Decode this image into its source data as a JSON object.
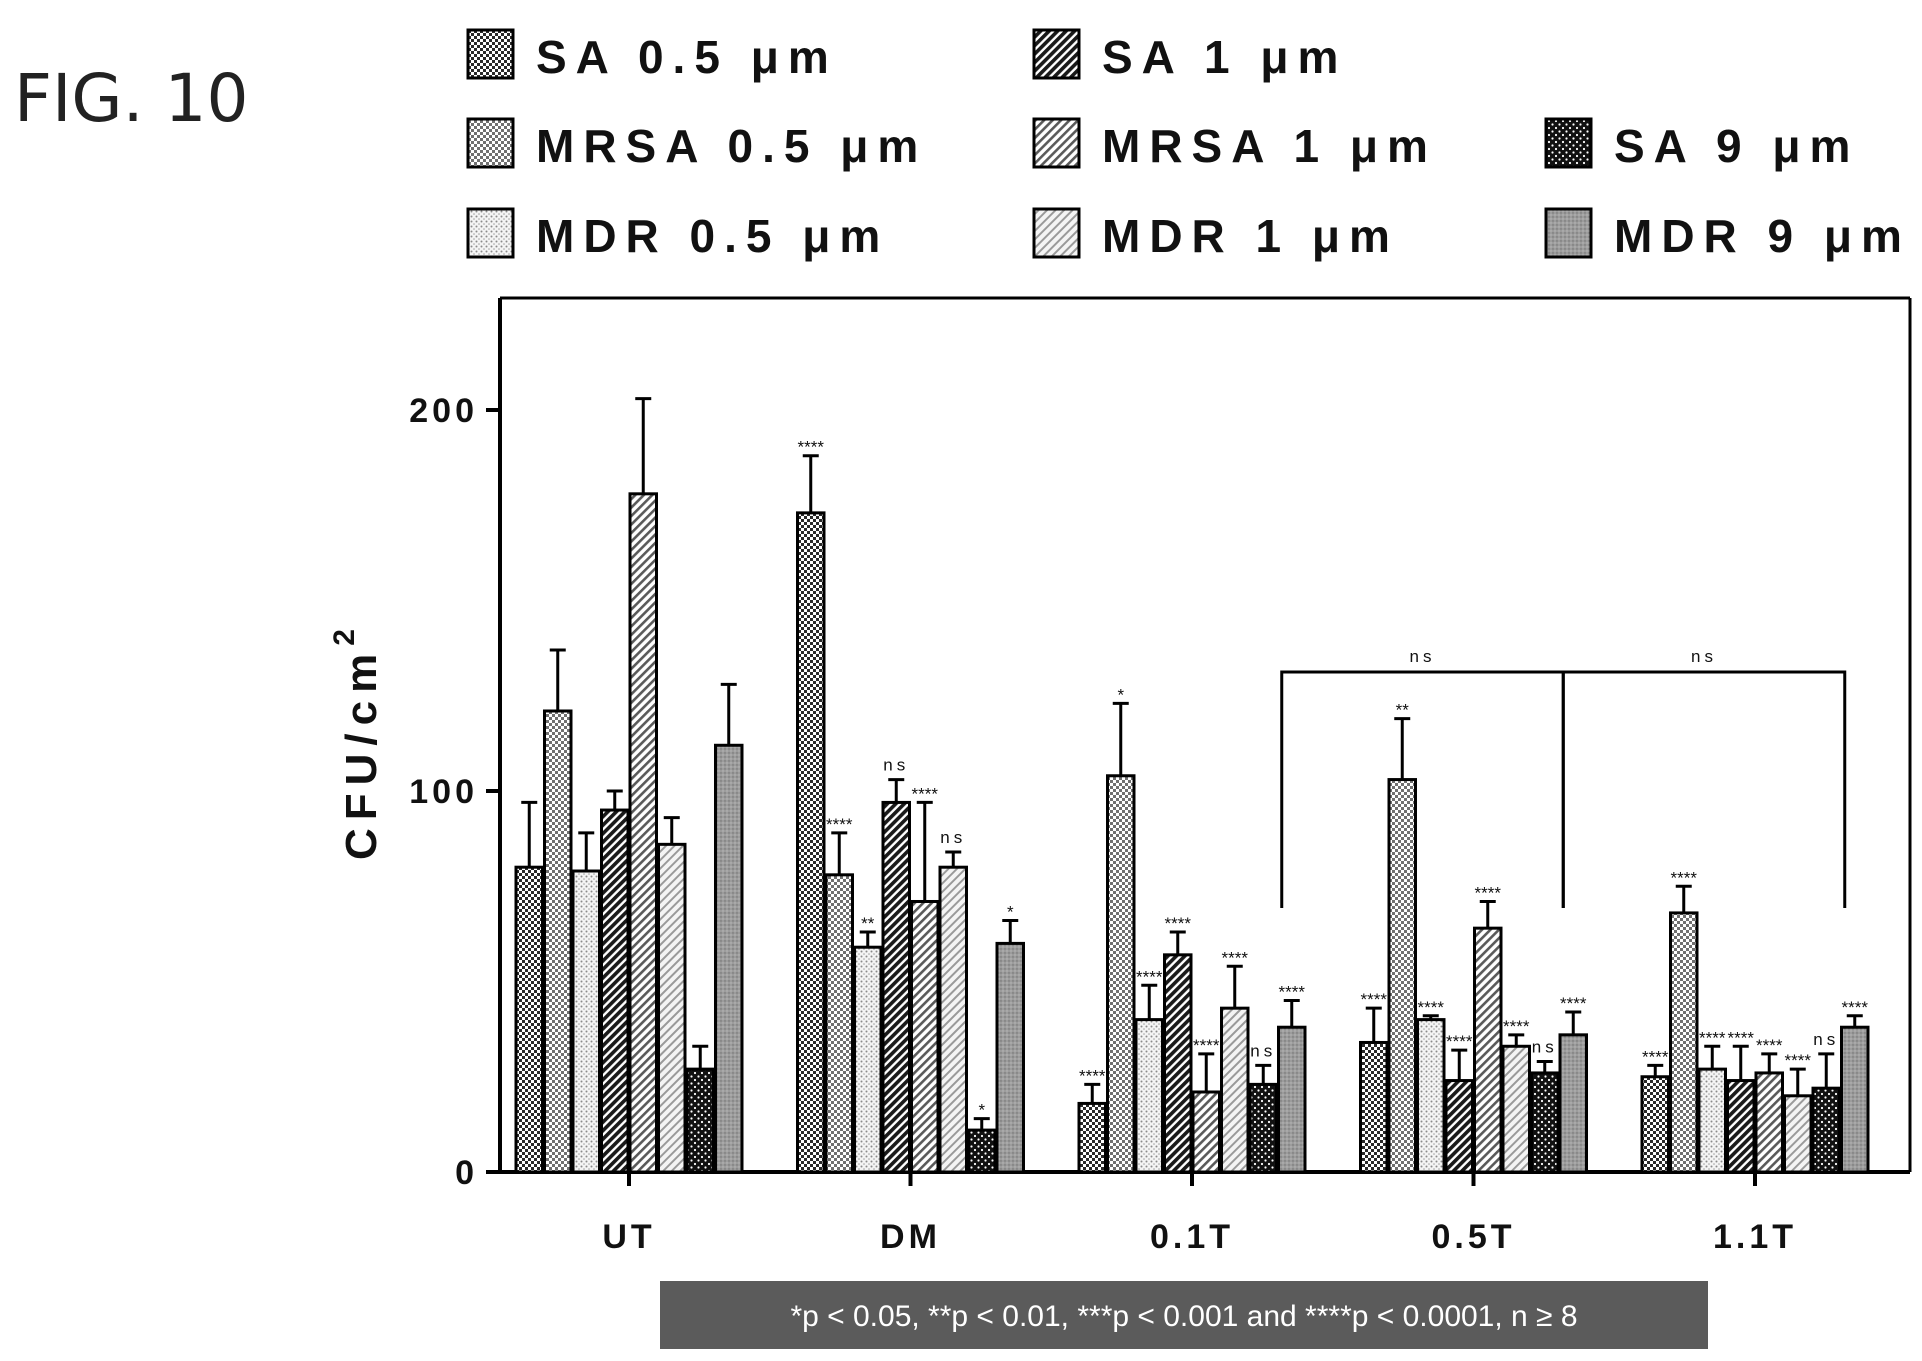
{
  "figure_label": "FIG. 10",
  "chart_data": {
    "type": "bar",
    "title": "",
    "xlabel": "",
    "ylabel": "CFU/cm",
    "ylabel_superscript": "2",
    "ylim": [
      0,
      230
    ],
    "yticks": [
      0,
      100,
      200
    ],
    "ytick_labels": [
      "0",
      "100",
      "200"
    ],
    "categories": [
      "UT",
      "DM",
      "0.1T",
      "0.5T",
      "1.1T"
    ],
    "grid": false,
    "legend_position": "top",
    "series": [
      {
        "name": "SA 0.5 μm",
        "pattern": "pat-sa05",
        "values": [
          80,
          173,
          18,
          34,
          25
        ],
        "errors": [
          17,
          15,
          5,
          9,
          3
        ],
        "sig": [
          "",
          "****",
          "****",
          "****",
          "****"
        ]
      },
      {
        "name": "MRSA 0.5 μm",
        "pattern": "pat-mrsa05",
        "values": [
          121,
          78,
          104,
          103,
          68
        ],
        "errors": [
          16,
          11,
          19,
          16,
          7
        ],
        "sig": [
          "",
          "****",
          "*",
          "**",
          "****"
        ]
      },
      {
        "name": "MDR 0.5 μm",
        "pattern": "pat-mdr05",
        "values": [
          79,
          59,
          40,
          40,
          27
        ],
        "errors": [
          10,
          4,
          9,
          1,
          6
        ],
        "sig": [
          "",
          "**",
          "****",
          "****",
          "****"
        ]
      },
      {
        "name": "SA 1 μm",
        "pattern": "pat-sa1",
        "values": [
          95,
          97,
          57,
          24,
          24
        ],
        "errors": [
          5,
          6,
          6,
          8,
          9
        ],
        "sig": [
          "",
          "ns",
          "****",
          "****",
          "****"
        ]
      },
      {
        "name": "MRSA 1 μm",
        "pattern": "pat-mrsa1",
        "values": [
          178,
          71,
          21,
          64,
          26
        ],
        "errors": [
          25,
          26,
          10,
          7,
          5
        ],
        "sig": [
          "",
          "****",
          "****",
          "****",
          "****"
        ]
      },
      {
        "name": "MDR 1 μm",
        "pattern": "pat-mdr1",
        "values": [
          86,
          80,
          43,
          33,
          20
        ],
        "errors": [
          7,
          4,
          11,
          3,
          7
        ],
        "sig": [
          "",
          "ns",
          "****",
          "****",
          "****"
        ]
      },
      {
        "name": "SA 9 μm",
        "pattern": "pat-sa9",
        "values": [
          27,
          11,
          23,
          26,
          22
        ],
        "errors": [
          6,
          3,
          5,
          3,
          9
        ],
        "sig": [
          "",
          "*",
          "ns",
          "ns",
          "ns"
        ]
      },
      {
        "name": "MDR 9 μm",
        "pattern": "pat-mdr9",
        "values": [
          112,
          60,
          38,
          36,
          38
        ],
        "errors": [
          16,
          6,
          7,
          6,
          3
        ],
        "sig": [
          "",
          "*",
          "****",
          "****",
          "****"
        ]
      }
    ],
    "brackets": [
      {
        "from_category": "0.1T",
        "to_category": "0.5T",
        "label": "ns"
      },
      {
        "from_category": "0.5T",
        "to_category": "1.1T",
        "label": "ns"
      }
    ],
    "footnote": "*p < 0.05, **p < 0.01, ***p < 0.001 and ****p < 0.0001, n ≥ 8"
  }
}
